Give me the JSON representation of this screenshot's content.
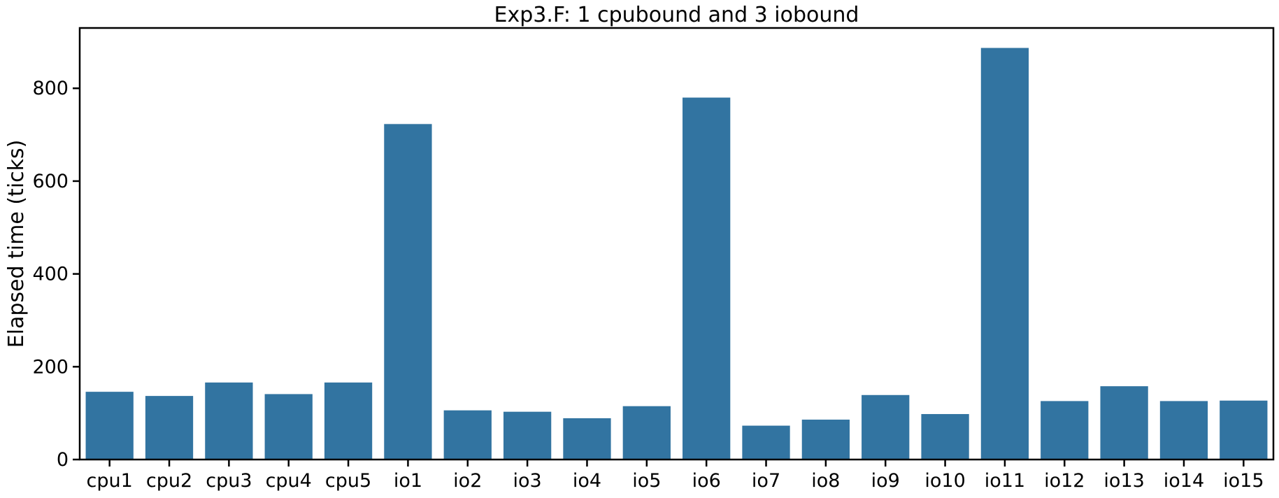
{
  "chart_data": {
    "type": "bar",
    "title": "Exp3.F: 1 cpubound and 3 iobound",
    "xlabel": "",
    "ylabel": "Elapsed time (ticks)",
    "categories": [
      "cpu1",
      "cpu2",
      "cpu3",
      "cpu4",
      "cpu5",
      "io1",
      "io2",
      "io3",
      "io4",
      "io5",
      "io6",
      "io7",
      "io8",
      "io9",
      "io10",
      "io11",
      "io12",
      "io13",
      "io14",
      "io15"
    ],
    "values": [
      146,
      137,
      166,
      141,
      166,
      723,
      106,
      103,
      89,
      115,
      780,
      73,
      86,
      139,
      98,
      887,
      126,
      158,
      126,
      127
    ],
    "ylim": [
      0,
      930
    ],
    "yticks": [
      0,
      200,
      400,
      600,
      800
    ],
    "bar_color": "#3274a1",
    "grid": false,
    "legend": "none"
  }
}
